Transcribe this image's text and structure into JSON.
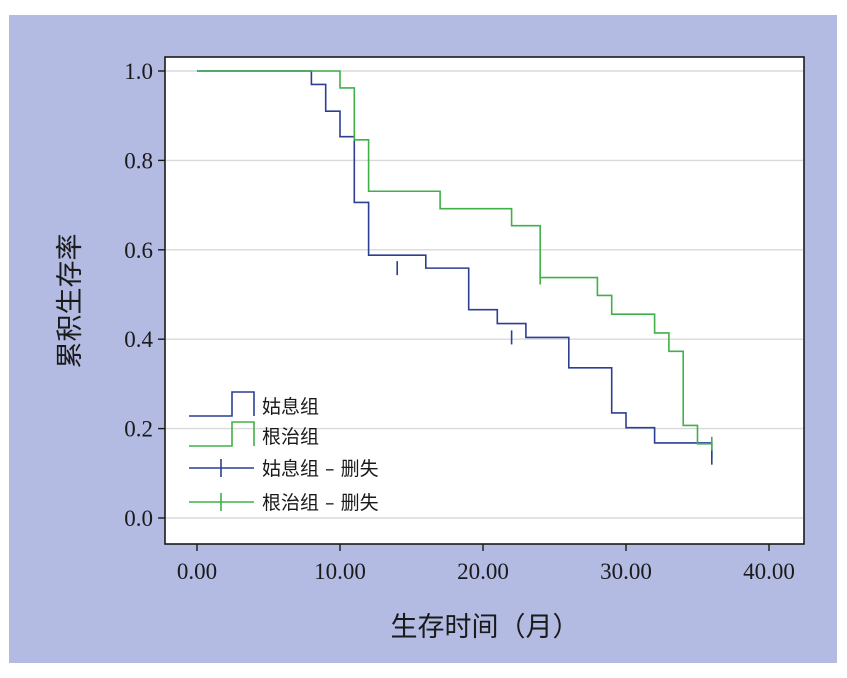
{
  "chart_data": {
    "type": "line",
    "step": true,
    "xlabel": "生存时间（月）",
    "ylabel": "累积生存率",
    "xlim": [
      0,
      40
    ],
    "ylim": [
      0,
      1
    ],
    "x_ticks": [
      0,
      10,
      20,
      30,
      40
    ],
    "x_tick_labels": [
      "0.00",
      "10.00",
      "20.00",
      "30.00",
      "40.00"
    ],
    "y_ticks": [
      0,
      0.2,
      0.4,
      0.6,
      0.8,
      1.0
    ],
    "y_tick_labels": [
      "0.0",
      "0.2",
      "0.4",
      "0.6",
      "0.8",
      "1.0"
    ],
    "grid": "horizontal",
    "legend_position": "bottom-left",
    "series": [
      {
        "name": "姑息组",
        "color": "#2c3f93",
        "x": [
          0,
          8,
          9,
          10,
          11,
          12,
          16,
          19,
          21,
          23,
          26,
          29,
          30,
          32,
          36
        ],
        "y": [
          1.0,
          0.97,
          0.91,
          0.853,
          0.706,
          0.588,
          0.559,
          0.466,
          0.435,
          0.404,
          0.336,
          0.235,
          0.202,
          0.168,
          0.135
        ]
      },
      {
        "name": "根治组",
        "color": "#3fb04a",
        "x": [
          0,
          10,
          11,
          12,
          17,
          22,
          24,
          28,
          29,
          32,
          33,
          34,
          35,
          36
        ],
        "y": [
          1.0,
          0.962,
          0.846,
          0.731,
          0.692,
          0.654,
          0.538,
          0.498,
          0.456,
          0.414,
          0.373,
          0.207,
          0.166,
          0.166
        ]
      }
    ],
    "censored": [
      {
        "name": "姑息组 – 删失",
        "color": "#2c3f93",
        "x": [
          14,
          22,
          36
        ],
        "y": [
          0.559,
          0.404,
          0.135
        ]
      },
      {
        "name": "根治组 – 删失",
        "color": "#3fb04a",
        "x": [
          24,
          36
        ],
        "y": [
          0.538,
          0.166
        ]
      }
    ]
  },
  "legend": {
    "items": [
      {
        "label": "姑息组",
        "kind": "step",
        "color": "#2c3f93"
      },
      {
        "label": "根治组",
        "kind": "step",
        "color": "#3fb04a"
      },
      {
        "label": "姑息组 – 删失",
        "kind": "censor",
        "color": "#2c3f93"
      },
      {
        "label": "根治组 – 删失",
        "kind": "censor",
        "color": "#3fb04a"
      }
    ]
  },
  "colors": {
    "background": "#b3bbe3",
    "plot_bg": "#ffffff",
    "grid": "#d9d9d9",
    "axis": "#1a1a1a"
  }
}
